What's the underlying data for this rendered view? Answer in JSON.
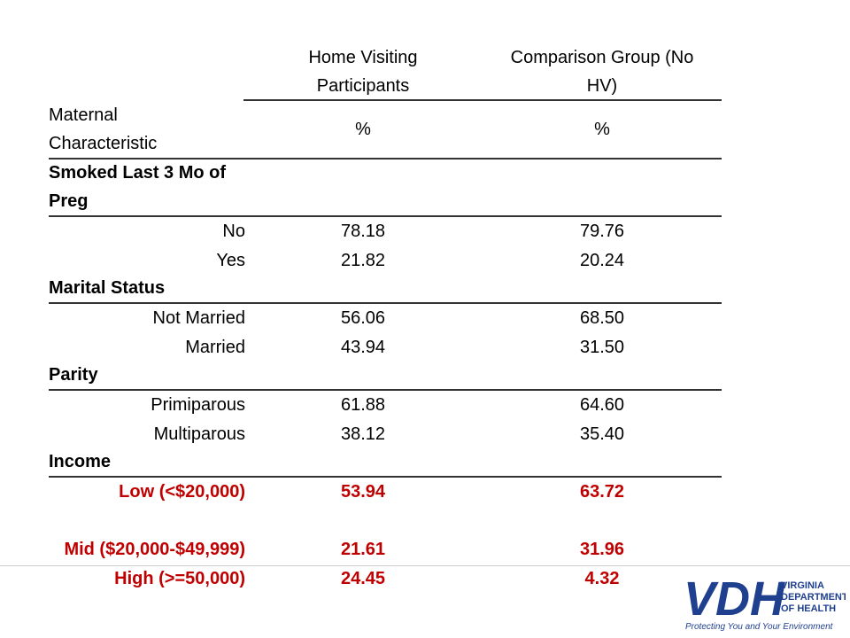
{
  "table": {
    "header": {
      "col1": "Home Visiting Participants",
      "col2": "Comparison Group (No HV)"
    },
    "subheader": {
      "label": "Maternal Characteristic",
      "col1": "%",
      "col2": "%"
    },
    "sections": [
      {
        "title": "Smoked Last 3 Mo of Preg",
        "rows": [
          {
            "label": "No",
            "values": [
              "78.18",
              "79.76"
            ]
          },
          {
            "label": "Yes",
            "values": [
              "21.82",
              "20.24"
            ]
          }
        ]
      },
      {
        "title": "Marital Status",
        "rows": [
          {
            "label": "Not Married",
            "values": [
              "56.06",
              "68.50"
            ]
          },
          {
            "label": "Married",
            "values": [
              "43.94",
              "31.50"
            ]
          }
        ]
      },
      {
        "title": "Parity",
        "rows": [
          {
            "label": "Primiparous",
            "values": [
              "61.88",
              "64.60"
            ]
          },
          {
            "label": "Multiparous",
            "values": [
              "38.12",
              "35.40"
            ]
          }
        ]
      },
      {
        "title": "Income",
        "highlight": true,
        "rows": [
          {
            "label": "Low (<$20,000)",
            "values": [
              "53.94",
              "63.72"
            ]
          },
          {
            "label": "Mid ($20,000-$49,999)",
            "values": [
              "21.61",
              "31.96"
            ]
          },
          {
            "label": "High (>=50,000)",
            "values": [
              "24.45",
              "4.32"
            ]
          }
        ]
      }
    ]
  },
  "footer": {
    "logo": "VDH",
    "line1": "VIRGINIA",
    "line2": "DEPARTMENT",
    "line3": "OF HEALTH",
    "tagline": "Protecting You and Your Environment"
  }
}
